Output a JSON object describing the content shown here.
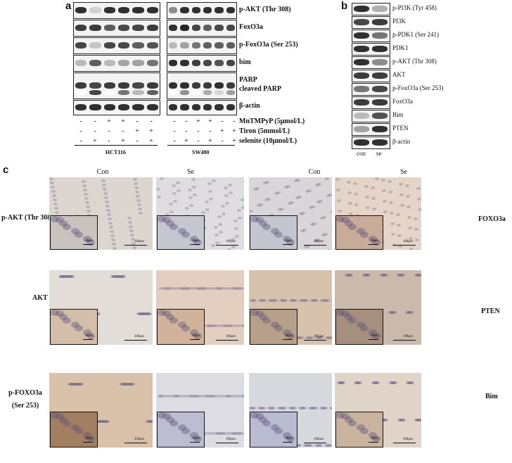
{
  "panel_a": {
    "letter": "a",
    "row_labels": [
      "p-AKT (Thr 308)",
      "FoxO3a",
      "p-FoxO3a (Ser 253)",
      "bim",
      "PARP",
      "cleaved PARP",
      "β-actin"
    ],
    "treatments": [
      {
        "name": "MnTMPyP (5μmol/L)",
        "signs": [
          "-",
          "-",
          "+",
          "+",
          "-",
          "-"
        ]
      },
      {
        "name": "Tiron (5mmol/L)",
        "signs": [
          "-",
          "-",
          "-",
          "-",
          "+",
          "+"
        ]
      },
      {
        "name": "selenite (10μmol/L)",
        "signs": [
          "-",
          "+",
          "-",
          "+",
          "-",
          "+"
        ]
      }
    ],
    "cell_lines": [
      "HCT116",
      "SW480"
    ]
  },
  "panel_b": {
    "letter": "b",
    "row_labels": [
      "p-PI3K (Tyr 458)",
      "PI3K",
      "p-PDK1 (Ser 241)",
      "PDK1",
      "p-AKT (Thr 308)",
      "AKT",
      "p-FoxO3a (Ser 253)",
      "FoxO3a",
      "Bim",
      "PTEN",
      "β-actin"
    ],
    "lanes": [
      "con",
      "se"
    ]
  },
  "panel_c": {
    "letter": "c",
    "column_headers": [
      "Con",
      "Se",
      "Con",
      "Se"
    ],
    "left_rows": [
      "p-AKT (Thr 308)",
      "AKT",
      "p-FOXO3a\n(Ser 253)"
    ],
    "right_rows": [
      "FOXO3a",
      "PTEN",
      "Bim"
    ],
    "inset_scale": "20μm",
    "main_scale": "100μm"
  }
}
